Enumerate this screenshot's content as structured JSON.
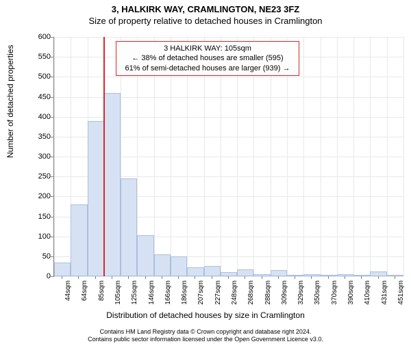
{
  "title_main": "3, HALKIRK WAY, CRAMLINGTON, NE23 3FZ",
  "title_sub": "Size of property relative to detached houses in Cramlington",
  "ylabel": "Number of detached properties",
  "xlabel": "Distribution of detached houses by size in Cramlington",
  "footer_line1": "Contains HM Land Registry data © Crown copyright and database right 2024.",
  "footer_line2": "Contains public sector information licensed under the Open Government Licence v3.0.",
  "chart": {
    "type": "histogram",
    "y_max": 600,
    "y_ticks": [
      0,
      50,
      100,
      150,
      200,
      250,
      300,
      350,
      400,
      450,
      500,
      550,
      600
    ],
    "x_labels": [
      "44sqm",
      "64sqm",
      "85sqm",
      "105sqm",
      "125sqm",
      "146sqm",
      "166sqm",
      "186sqm",
      "207sqm",
      "227sqm",
      "248sqm",
      "268sqm",
      "288sqm",
      "309sqm",
      "329sqm",
      "350sqm",
      "370sqm",
      "390sqm",
      "410sqm",
      "431sqm",
      "451sqm"
    ],
    "values": [
      35,
      180,
      390,
      460,
      245,
      103,
      55,
      50,
      22,
      25,
      10,
      18,
      5,
      15,
      2,
      5,
      3,
      5,
      3,
      12,
      4
    ],
    "bar_fill": "#d6e2f3",
    "bar_border": "#a9bfe0",
    "grid_color": "#e8e8e8",
    "axis_color": "#808080",
    "background": "#ffffff",
    "marker_x_index": 3,
    "marker_color": "#d92626",
    "callout": {
      "line1": "3 HALKIRK WAY: 105sqm",
      "line2": "← 38% of detached houses are smaller (595)",
      "line3": "61% of semi-detached houses are larger (939) →",
      "border": "#d92626",
      "bg": "#fdfdfd"
    }
  }
}
